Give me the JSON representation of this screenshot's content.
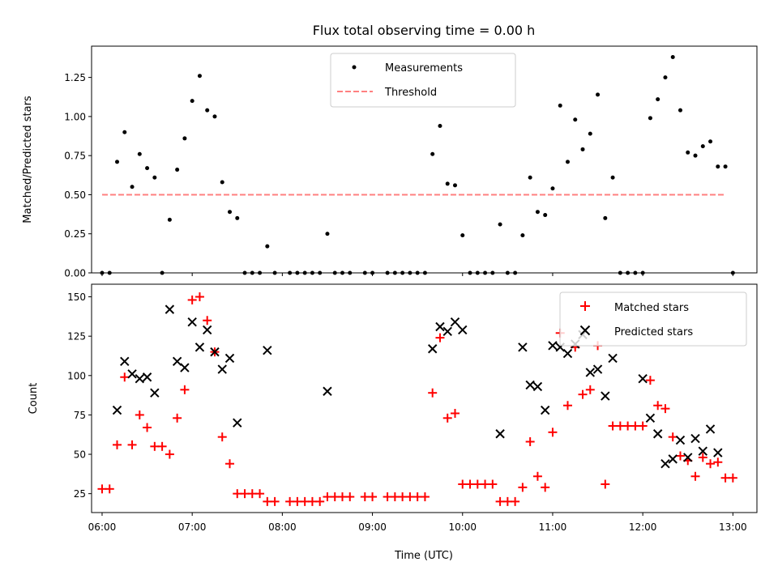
{
  "chart_data": [
    {
      "type": "scatter",
      "title": "Flux total observing time = 0.00 h",
      "xlabel": "",
      "ylabel": "Matched/Predicted stars",
      "ylim": [
        0,
        1.45
      ],
      "xlim": [
        "05:53",
        "13:16"
      ],
      "grid": false,
      "legend_position": "top-center",
      "yticks": [
        "0.00",
        "0.25",
        "0.50",
        "0.75",
        "1.00",
        "1.25"
      ],
      "series": [
        {
          "name": "Measurements",
          "marker": "dot",
          "color": "#000000",
          "points": [
            [
              "06:00",
              0
            ],
            [
              "06:05",
              0
            ],
            [
              "06:10",
              0.71
            ],
            [
              "06:15",
              0.9
            ],
            [
              "06:20",
              0.55
            ],
            [
              "06:25",
              0.76
            ],
            [
              "06:30",
              0.67
            ],
            [
              "06:35",
              0.61
            ],
            [
              "06:40",
              0
            ],
            [
              "06:45",
              0.34
            ],
            [
              "06:50",
              0.66
            ],
            [
              "06:55",
              0.86
            ],
            [
              "07:00",
              1.1
            ],
            [
              "07:05",
              1.26
            ],
            [
              "07:10",
              1.04
            ],
            [
              "07:15",
              1.0
            ],
            [
              "07:20",
              0.58
            ],
            [
              "07:25",
              0.39
            ],
            [
              "07:30",
              0.35
            ],
            [
              "07:35",
              0
            ],
            [
              "07:40",
              0
            ],
            [
              "07:45",
              0
            ],
            [
              "07:50",
              0.17
            ],
            [
              "07:55",
              0
            ],
            [
              "08:05",
              0
            ],
            [
              "08:10",
              0
            ],
            [
              "08:15",
              0
            ],
            [
              "08:20",
              0
            ],
            [
              "08:25",
              0
            ],
            [
              "08:30",
              0.25
            ],
            [
              "08:35",
              0
            ],
            [
              "08:40",
              0
            ],
            [
              "08:45",
              0
            ],
            [
              "08:55",
              0
            ],
            [
              "09:00",
              0
            ],
            [
              "09:10",
              0
            ],
            [
              "09:15",
              0
            ],
            [
              "09:20",
              0
            ],
            [
              "09:25",
              0
            ],
            [
              "09:30",
              0
            ],
            [
              "09:35",
              0
            ],
            [
              "09:40",
              0.76
            ],
            [
              "09:45",
              0.94
            ],
            [
              "09:50",
              0.57
            ],
            [
              "09:55",
              0.56
            ],
            [
              "10:00",
              0.24
            ],
            [
              "10:05",
              0
            ],
            [
              "10:10",
              0
            ],
            [
              "10:15",
              0
            ],
            [
              "10:20",
              0
            ],
            [
              "10:25",
              0.31
            ],
            [
              "10:30",
              0
            ],
            [
              "10:35",
              0
            ],
            [
              "10:40",
              0.24
            ],
            [
              "10:45",
              0.61
            ],
            [
              "10:50",
              0.39
            ],
            [
              "10:55",
              0.37
            ],
            [
              "11:00",
              0.54
            ],
            [
              "11:05",
              1.07
            ],
            [
              "11:10",
              0.71
            ],
            [
              "11:15",
              0.98
            ],
            [
              "11:20",
              0.79
            ],
            [
              "11:25",
              0.89
            ],
            [
              "11:30",
              1.14
            ],
            [
              "11:35",
              0.35
            ],
            [
              "11:40",
              0.61
            ],
            [
              "11:45",
              0
            ],
            [
              "11:50",
              0
            ],
            [
              "11:55",
              0
            ],
            [
              "12:00",
              0
            ],
            [
              "12:05",
              0.99
            ],
            [
              "12:10",
              1.11
            ],
            [
              "12:15",
              1.25
            ],
            [
              "12:20",
              1.38
            ],
            [
              "12:25",
              1.04
            ],
            [
              "12:30",
              0.77
            ],
            [
              "12:35",
              0.75
            ],
            [
              "12:40",
              0.81
            ],
            [
              "12:45",
              0.84
            ],
            [
              "12:50",
              0.68
            ],
            [
              "12:55",
              0.68
            ],
            [
              "13:00",
              0
            ]
          ]
        },
        {
          "name": "Threshold",
          "marker": "dashed-line",
          "color": "#ff8080",
          "points": [
            [
              "06:00",
              0.5
            ],
            [
              "12:55",
              0.5
            ]
          ]
        }
      ]
    },
    {
      "type": "scatter",
      "xlabel": "Time (UTC)",
      "ylabel": "Count",
      "ylim": [
        13,
        158
      ],
      "xlim": [
        "05:53",
        "13:16"
      ],
      "grid": false,
      "legend_position": "top-right",
      "xticks": [
        "06:00",
        "07:00",
        "08:00",
        "09:00",
        "10:00",
        "11:00",
        "12:00",
        "13:00"
      ],
      "yticks": [
        "25",
        "50",
        "75",
        "100",
        "125",
        "150"
      ],
      "series": [
        {
          "name": "Matched stars",
          "marker": "plus",
          "color": "#ff0000",
          "points": [
            [
              "06:00",
              28
            ],
            [
              "06:05",
              28
            ],
            [
              "06:10",
              56
            ],
            [
              "06:15",
              99
            ],
            [
              "06:20",
              56
            ],
            [
              "06:25",
              75
            ],
            [
              "06:30",
              67
            ],
            [
              "06:35",
              55
            ],
            [
              "06:40",
              55
            ],
            [
              "06:45",
              50
            ],
            [
              "06:50",
              73
            ],
            [
              "06:55",
              91
            ],
            [
              "07:00",
              148
            ],
            [
              "07:05",
              150
            ],
            [
              "07:10",
              135
            ],
            [
              "07:15",
              115
            ],
            [
              "07:20",
              61
            ],
            [
              "07:25",
              44
            ],
            [
              "07:30",
              25
            ],
            [
              "07:35",
              25
            ],
            [
              "07:40",
              25
            ],
            [
              "07:45",
              25
            ],
            [
              "07:50",
              20
            ],
            [
              "07:55",
              20
            ],
            [
              "08:05",
              20
            ],
            [
              "08:10",
              20
            ],
            [
              "08:15",
              20
            ],
            [
              "08:20",
              20
            ],
            [
              "08:25",
              20
            ],
            [
              "08:30",
              23
            ],
            [
              "08:35",
              23
            ],
            [
              "08:40",
              23
            ],
            [
              "08:45",
              23
            ],
            [
              "08:55",
              23
            ],
            [
              "09:00",
              23
            ],
            [
              "09:10",
              23
            ],
            [
              "09:15",
              23
            ],
            [
              "09:20",
              23
            ],
            [
              "09:25",
              23
            ],
            [
              "09:30",
              23
            ],
            [
              "09:35",
              23
            ],
            [
              "09:40",
              89
            ],
            [
              "09:45",
              124
            ],
            [
              "09:50",
              73
            ],
            [
              "09:55",
              76
            ],
            [
              "10:00",
              31
            ],
            [
              "10:05",
              31
            ],
            [
              "10:10",
              31
            ],
            [
              "10:15",
              31
            ],
            [
              "10:20",
              31
            ],
            [
              "10:25",
              20
            ],
            [
              "10:30",
              20
            ],
            [
              "10:35",
              20
            ],
            [
              "10:40",
              29
            ],
            [
              "10:45",
              58
            ],
            [
              "10:50",
              36
            ],
            [
              "10:55",
              29
            ],
            [
              "11:00",
              64
            ],
            [
              "11:05",
              127
            ],
            [
              "11:10",
              81
            ],
            [
              "11:15",
              118
            ],
            [
              "11:20",
              88
            ],
            [
              "11:25",
              91
            ],
            [
              "11:30",
              119
            ],
            [
              "11:35",
              31
            ],
            [
              "11:40",
              68
            ],
            [
              "11:45",
              68
            ],
            [
              "11:50",
              68
            ],
            [
              "11:55",
              68
            ],
            [
              "12:00",
              68
            ],
            [
              "12:05",
              97
            ],
            [
              "12:10",
              81
            ],
            [
              "12:15",
              79
            ],
            [
              "12:20",
              61
            ],
            [
              "12:25",
              49
            ],
            [
              "12:30",
              46
            ],
            [
              "12:35",
              36
            ],
            [
              "12:40",
              48
            ],
            [
              "12:45",
              44
            ],
            [
              "12:50",
              45
            ],
            [
              "12:55",
              35
            ],
            [
              "13:00",
              35
            ]
          ]
        },
        {
          "name": "Predicted stars",
          "marker": "x",
          "color": "#000000",
          "points": [
            [
              "06:10",
              78
            ],
            [
              "06:15",
              109
            ],
            [
              "06:20",
              101
            ],
            [
              "06:25",
              98
            ],
            [
              "06:30",
              99
            ],
            [
              "06:35",
              89
            ],
            [
              "06:45",
              142
            ],
            [
              "06:50",
              109
            ],
            [
              "06:55",
              105
            ],
            [
              "07:00",
              134
            ],
            [
              "07:05",
              118
            ],
            [
              "07:10",
              129
            ],
            [
              "07:15",
              115
            ],
            [
              "07:20",
              104
            ],
            [
              "07:25",
              111
            ],
            [
              "07:30",
              70
            ],
            [
              "07:50",
              116
            ],
            [
              "08:30",
              90
            ],
            [
              "09:40",
              117
            ],
            [
              "09:45",
              131
            ],
            [
              "09:50",
              128
            ],
            [
              "09:55",
              134
            ],
            [
              "10:00",
              129
            ],
            [
              "10:25",
              63
            ],
            [
              "10:40",
              118
            ],
            [
              "10:45",
              94
            ],
            [
              "10:50",
              93
            ],
            [
              "10:55",
              78
            ],
            [
              "11:00",
              119
            ],
            [
              "11:05",
              118
            ],
            [
              "11:10",
              114
            ],
            [
              "11:15",
              120
            ],
            [
              "11:20",
              126
            ],
            [
              "11:25",
              102
            ],
            [
              "11:30",
              104
            ],
            [
              "11:35",
              87
            ],
            [
              "11:40",
              111
            ],
            [
              "12:00",
              98
            ],
            [
              "12:05",
              73
            ],
            [
              "12:10",
              63
            ],
            [
              "12:15",
              44
            ],
            [
              "12:20",
              47
            ],
            [
              "12:25",
              59
            ],
            [
              "12:30",
              48
            ],
            [
              "12:35",
              60
            ],
            [
              "12:40",
              52
            ],
            [
              "12:45",
              66
            ],
            [
              "12:50",
              51
            ]
          ]
        }
      ]
    }
  ]
}
